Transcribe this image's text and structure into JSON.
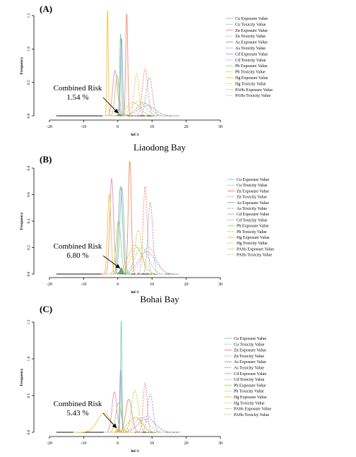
{
  "chart_data": [
    {
      "type": "line",
      "panel_label": "(A)",
      "title": "",
      "xlabel": "lnC1",
      "ylabel": "Frequency",
      "xlim": [
        -20,
        30
      ],
      "ylim": [
        0,
        1.5
      ],
      "xticks": [
        -20,
        -10,
        0,
        10,
        20,
        30
      ],
      "yticks": [
        0.0,
        0.5,
        1.0,
        1.5
      ],
      "annotation": {
        "title": "Combined Risk",
        "value": "1.54 %",
        "arrow_to": [
          0.5,
          0.03
        ]
      },
      "legend_position": "right",
      "series": [
        {
          "name": "Cu Exposure Value",
          "color": "#7ccfb8",
          "dash": false,
          "mean": 0.8,
          "sd": 0.25,
          "peak": 1.22
        },
        {
          "name": "Cu Toxicity Value",
          "color": "#7ccfb8",
          "dash": true,
          "mean": 7.5,
          "sd": 2.0,
          "peak": 0.2
        },
        {
          "name": "Zn Exposure Value",
          "color": "#f48a6e",
          "dash": false,
          "mean": 2.6,
          "sd": 0.3,
          "peak": 1.52
        },
        {
          "name": "Zn Toxicity Value",
          "color": "#f48a6e",
          "dash": true,
          "mean": 8.0,
          "sd": 0.8,
          "peak": 0.7
        },
        {
          "name": "As Exposure Value",
          "color": "#8fa2cc",
          "dash": false,
          "mean": 1.1,
          "sd": 0.3,
          "peak": 1.15
        },
        {
          "name": "As Toxicity Value",
          "color": "#8fa2cc",
          "dash": true,
          "mean": 9.2,
          "sd": 0.9,
          "peak": 0.57
        },
        {
          "name": "Cd Exposure Value",
          "color": "#e58fc4",
          "dash": false,
          "mean": -0.8,
          "sd": 0.7,
          "peak": 0.68
        },
        {
          "name": "Cd Toxicity Value",
          "color": "#e58fc4",
          "dash": true,
          "mean": 8.5,
          "sd": 2.5,
          "peak": 0.15
        },
        {
          "name": "Pb Exposure Value",
          "color": "#a6d854",
          "dash": false,
          "mean": -0.2,
          "sd": 0.6,
          "peak": 0.6
        },
        {
          "name": "Pb Toxicity Value",
          "color": "#a6d854",
          "dash": true,
          "mean": 6.0,
          "sd": 2.0,
          "peak": 0.22
        },
        {
          "name": "Hg Exposure Value",
          "color": "#f5c32e",
          "dash": false,
          "mean": -3.0,
          "sd": 0.2,
          "peak": 1.58
        },
        {
          "name": "Hg Toxicity Value",
          "color": "#f5c32e",
          "dash": true,
          "mean": 5.5,
          "sd": 0.7,
          "peak": 0.63
        },
        {
          "name": "PAHs Exposure Value",
          "color": "#e0c9a6",
          "dash": false,
          "mean": 4.5,
          "sd": 2.0,
          "peak": 0.2
        },
        {
          "name": "PAHs Toxicity Value",
          "color": "#bfbfbf",
          "dash": true,
          "mean": 8.0,
          "sd": 2.5,
          "peak": 0.18
        }
      ]
    },
    {
      "type": "line",
      "panel_label": "(B)",
      "title": "Liaodong Bay",
      "xlabel": "lnC1",
      "ylabel": "Frequency",
      "xlim": [
        -20,
        30
      ],
      "ylim": [
        0,
        0.8
      ],
      "xticks": [
        -20,
        -10,
        0,
        10,
        20,
        30
      ],
      "yticks": [
        0.0,
        0.2,
        0.4,
        0.6,
        0.8
      ],
      "annotation": {
        "title": "Combined Risk",
        "value": "6.80 %",
        "arrow_to": [
          1.0,
          0.04
        ]
      },
      "legend_position": "right",
      "series": [
        {
          "name": "Cu Exposure Value",
          "color": "#7ccfb8",
          "dash": false,
          "mean": 1.2,
          "sd": 0.6,
          "peak": 0.65
        },
        {
          "name": "Cu Toxicity Value",
          "color": "#7ccfb8",
          "dash": true,
          "mean": 7.0,
          "sd": 2.0,
          "peak": 0.2
        },
        {
          "name": "Zn Exposure Value",
          "color": "#f48a6e",
          "dash": false,
          "mean": 3.5,
          "sd": 0.45,
          "peak": 0.85
        },
        {
          "name": "Zn Toxicity Value",
          "color": "#f48a6e",
          "dash": true,
          "mean": 8.0,
          "sd": 0.6,
          "peak": 0.66
        },
        {
          "name": "As Exposure Value",
          "color": "#8fa2cc",
          "dash": false,
          "mean": 0.8,
          "sd": 0.6,
          "peak": 0.66
        },
        {
          "name": "As Toxicity Value",
          "color": "#8fa2cc",
          "dash": true,
          "mean": 9.5,
          "sd": 0.7,
          "peak": 0.54
        },
        {
          "name": "Cd Exposure Value",
          "color": "#e58fc4",
          "dash": false,
          "mean": -1.8,
          "sd": 0.55,
          "peak": 0.72
        },
        {
          "name": "Cd Toxicity Value",
          "color": "#e58fc4",
          "dash": true,
          "mean": 8.5,
          "sd": 2.5,
          "peak": 0.17
        },
        {
          "name": "Pb Exposure Value",
          "color": "#a6d854",
          "dash": false,
          "mean": 0.2,
          "sd": 0.7,
          "peak": 0.4
        },
        {
          "name": "Pb Toxicity Value",
          "color": "#a6d854",
          "dash": true,
          "mean": 6.0,
          "sd": 1.0,
          "peak": 0.33
        },
        {
          "name": "Hg Exposure Value",
          "color": "#f5c32e",
          "dash": false,
          "mean": -2.5,
          "sd": 0.5,
          "peak": 0.6
        },
        {
          "name": "Hg Toxicity Value",
          "color": "#f5c32e",
          "dash": true,
          "mean": 5.5,
          "sd": 1.8,
          "peak": 0.2
        },
        {
          "name": "PAHs Exposure Value",
          "color": "#e0c9a6",
          "dash": false,
          "mean": 5.0,
          "sd": 2.0,
          "peak": 0.22
        },
        {
          "name": "PAHs Toxicity Value",
          "color": "#bfbfbf",
          "dash": true,
          "mean": 9.0,
          "sd": 2.2,
          "peak": 0.2
        }
      ]
    },
    {
      "type": "line",
      "panel_label": "(C)",
      "title": "Bohai Bay",
      "xlabel": "lnC1",
      "ylabel": "Frequency",
      "xlim": [
        -20,
        30
      ],
      "ylim": [
        0,
        1.5
      ],
      "xticks": [
        -20,
        -10,
        0,
        10,
        20,
        30
      ],
      "yticks": [
        0.0,
        0.5,
        1.0,
        1.5
      ],
      "annotation": {
        "title": "Combined Risk",
        "value": "5.43 %",
        "arrow_to": [
          0.0,
          0.05
        ]
      },
      "legend_position": "right",
      "series": [
        {
          "name": "Cu Exposure Value",
          "color": "#7ccfb8",
          "dash": false,
          "mean": 1.0,
          "sd": 0.2,
          "peak": 1.52
        },
        {
          "name": "Cu Toxicity Value",
          "color": "#7ccfb8",
          "dash": true,
          "mean": 7.0,
          "sd": 2.0,
          "peak": 0.2
        },
        {
          "name": "Zn Exposure Value",
          "color": "#f48a6e",
          "dash": false,
          "mean": 3.2,
          "sd": 0.9,
          "peak": 0.45
        },
        {
          "name": "Zn Toxicity Value",
          "color": "#f48a6e",
          "dash": true,
          "mean": 8.0,
          "sd": 0.6,
          "peak": 0.67
        },
        {
          "name": "As Exposure Value",
          "color": "#8fa2cc",
          "dash": false,
          "mean": 0.8,
          "sd": 0.25,
          "peak": 0.85
        },
        {
          "name": "As Toxicity Value",
          "color": "#8fa2cc",
          "dash": true,
          "mean": 9.5,
          "sd": 0.8,
          "peak": 0.52
        },
        {
          "name": "Cd Exposure Value",
          "color": "#e58fc4",
          "dash": false,
          "mean": -1.0,
          "sd": 0.7,
          "peak": 0.55
        },
        {
          "name": "Cd Toxicity Value",
          "color": "#e58fc4",
          "dash": true,
          "mean": 8.5,
          "sd": 2.5,
          "peak": 0.18
        },
        {
          "name": "Pb Exposure Value",
          "color": "#a6d854",
          "dash": false,
          "mean": 0.2,
          "sd": 0.8,
          "peak": 0.4
        },
        {
          "name": "Pb Toxicity Value",
          "color": "#a6d854",
          "dash": true,
          "mean": 5.0,
          "sd": 1.0,
          "peak": 0.57
        },
        {
          "name": "Hg Exposure Value",
          "color": "#f5c32e",
          "dash": false,
          "mean": -4.0,
          "sd": 2.0,
          "peak": 0.26
        },
        {
          "name": "Hg Toxicity Value",
          "color": "#f5c32e",
          "dash": true,
          "mean": 5.5,
          "sd": 1.8,
          "peak": 0.2
        },
        {
          "name": "PAHs Exposure Value",
          "color": "#e0c9a6",
          "dash": false,
          "mean": 5.0,
          "sd": 2.0,
          "peak": 0.2
        },
        {
          "name": "PAHs Toxicity Value",
          "color": "#bfbfbf",
          "dash": true,
          "mean": 8.5,
          "sd": 2.2,
          "peak": 0.22
        }
      ]
    }
  ]
}
